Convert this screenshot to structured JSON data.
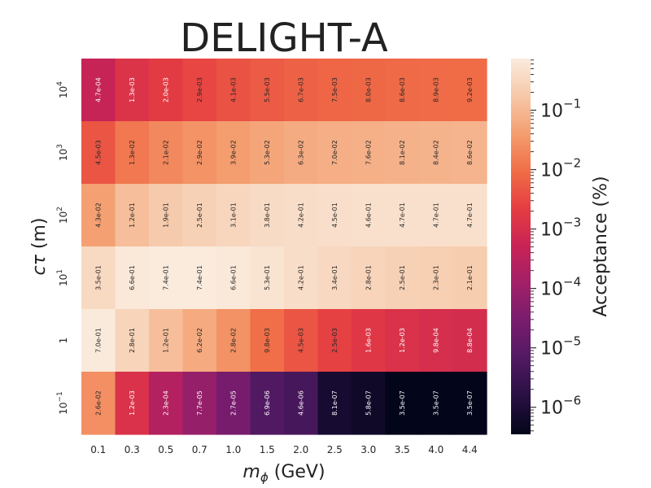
{
  "chart_data": {
    "type": "heatmap",
    "title": "DELIGHT-A",
    "xlabel": "m_φ (GeV)",
    "ylabel": "cτ (m)",
    "colorbar_label": "Acceptance (%)",
    "colorbar_scale": "log",
    "colorbar_range": [
      3.5e-07,
      0.74
    ],
    "colorbar_ticks": [
      {
        "base": "10",
        "exp": "−6",
        "value": 1e-06
      },
      {
        "base": "10",
        "exp": "−5",
        "value": 1e-05
      },
      {
        "base": "10",
        "exp": "−4",
        "value": 0.0001
      },
      {
        "base": "10",
        "exp": "−3",
        "value": 0.001
      },
      {
        "base": "10",
        "exp": "−2",
        "value": 0.01
      },
      {
        "base": "10",
        "exp": "−1",
        "value": 0.1
      }
    ],
    "x_categories": [
      "0.1",
      "0.3",
      "0.5",
      "0.7",
      "1.0",
      "1.5",
      "2.0",
      "2.5",
      "3.0",
      "3.5",
      "4.0",
      "4.4"
    ],
    "y_categories": [
      {
        "base": "10",
        "exp": "4"
      },
      {
        "base": "10",
        "exp": "3"
      },
      {
        "base": "10",
        "exp": "2"
      },
      {
        "base": "10",
        "exp": "1"
      },
      {
        "base": "1",
        "exp": ""
      },
      {
        "base": "10",
        "exp": "−1"
      }
    ],
    "values": [
      [
        "4.7e-04",
        "1.3e-03",
        "2.0e-03",
        "2.9e-03",
        "4.1e-03",
        "5.5e-03",
        "6.7e-03",
        "7.5e-03",
        "8.0e-03",
        "8.6e-03",
        "8.9e-03",
        "9.2e-03"
      ],
      [
        "4.5e-03",
        "1.3e-02",
        "2.1e-02",
        "2.9e-02",
        "3.9e-02",
        "5.3e-02",
        "6.3e-02",
        "7.0e-02",
        "7.6e-02",
        "8.1e-02",
        "8.4e-02",
        "8.6e-02"
      ],
      [
        "4.3e-02",
        "1.2e-01",
        "1.9e-01",
        "2.5e-01",
        "3.1e-01",
        "3.8e-01",
        "4.2e-01",
        "4.5e-01",
        "4.6e-01",
        "4.7e-01",
        "4.7e-01",
        "4.7e-01"
      ],
      [
        "3.5e-01",
        "6.6e-01",
        "7.4e-01",
        "7.4e-01",
        "6.6e-01",
        "5.3e-01",
        "4.2e-01",
        "3.4e-01",
        "2.8e-01",
        "2.5e-01",
        "2.3e-01",
        "2.1e-01"
      ],
      [
        "7.0e-01",
        "2.8e-01",
        "1.2e-01",
        "6.2e-02",
        "2.8e-02",
        "9.8e-03",
        "4.5e-03",
        "2.5e-03",
        "1.6e-03",
        "1.2e-03",
        "9.8e-04",
        "8.8e-04"
      ],
      [
        "2.6e-02",
        "1.2e-03",
        "2.3e-04",
        "7.7e-05",
        "2.7e-05",
        "6.9e-06",
        "4.6e-06",
        "8.1e-07",
        "5.8e-07",
        "3.5e-07",
        "3.5e-07",
        "3.5e-07"
      ]
    ]
  }
}
